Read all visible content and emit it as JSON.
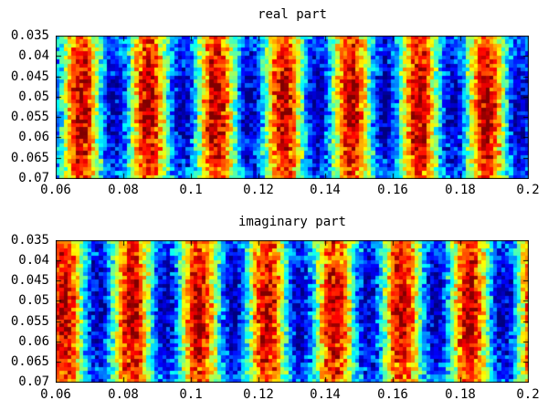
{
  "figure": {
    "background": "#ffffff",
    "text_color": "#000000"
  },
  "chart_data": [
    {
      "type": "heatmap",
      "title": "real part",
      "x_range": [
        0.06,
        0.2
      ],
      "y_range": [
        0.035,
        0.07
      ],
      "y_axis_direction": "reversed",
      "x_ticks": [
        "0.06",
        "0.08",
        "0.1",
        "0.12",
        "0.14",
        "0.16",
        "0.18",
        "0.2"
      ],
      "y_ticks": [
        "0.035",
        "0.04",
        "0.045",
        "0.05",
        "0.055",
        "0.06",
        "0.065",
        "0.07"
      ],
      "colormap": "jet",
      "grid": {
        "cols": 120,
        "rows": 36
      },
      "value_range": [
        -1.15,
        1.15
      ],
      "pattern": {
        "kind": "vertical-sinusoid-stripes-with-noise",
        "component": "cos",
        "stripe_period_x": 0.02,
        "max_stripe_x": 0.0675,
        "noise_amplitude": 0.45,
        "y_envelope_edge": 0.7,
        "y_envelope_center": 1.05
      },
      "legend": "none",
      "grid_lines": "off"
    },
    {
      "type": "heatmap",
      "title": "imaginary part",
      "x_range": [
        0.06,
        0.2
      ],
      "y_range": [
        0.035,
        0.07
      ],
      "y_axis_direction": "reversed",
      "x_ticks": [
        "0.06",
        "0.08",
        "0.1",
        "0.12",
        "0.14",
        "0.16",
        "0.18",
        "0.2"
      ],
      "y_ticks": [
        "0.035",
        "0.04",
        "0.045",
        "0.05",
        "0.055",
        "0.06",
        "0.065",
        "0.07"
      ],
      "colormap": "jet",
      "grid": {
        "cols": 120,
        "rows": 36
      },
      "value_range": [
        -1.15,
        1.15
      ],
      "pattern": {
        "kind": "vertical-sinusoid-stripes-with-noise",
        "component": "-sin",
        "stripe_period_x": 0.02,
        "max_stripe_x": 0.0675,
        "noise_amplitude": 0.45,
        "y_envelope_edge": 0.7,
        "y_envelope_center": 1.05
      },
      "legend": "none",
      "grid_lines": "off"
    }
  ]
}
